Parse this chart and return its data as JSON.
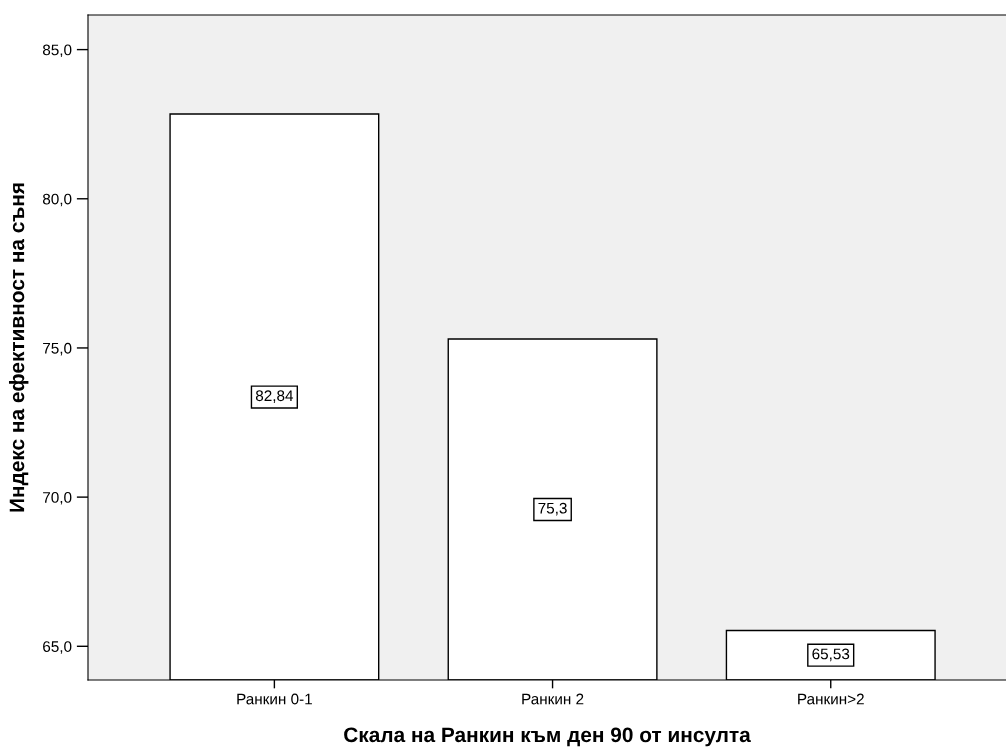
{
  "chart_data": {
    "type": "bar",
    "xlabel": "Скала на Ранкин към ден 90 от инсулта",
    "ylabel": "Индекс на ефективност на съня",
    "categories": [
      "Ранкин 0-1",
      "Ранкин 2",
      "Ранкин>2"
    ],
    "values": [
      82.84,
      75.3,
      65.53
    ],
    "value_labels": [
      "82,84",
      "75,3",
      "65,53"
    ],
    "color": "#ffffff",
    "ylim": [
      63.87,
      86.16
    ],
    "yticks": [
      {
        "value": 65,
        "label": "65,0"
      },
      {
        "value": 70,
        "label": "70,0"
      },
      {
        "value": 75,
        "label": "75,0"
      },
      {
        "value": 80,
        "label": "80,0"
      },
      {
        "value": 85,
        "label": "85,0"
      }
    ],
    "grid": false,
    "legend": false
  }
}
